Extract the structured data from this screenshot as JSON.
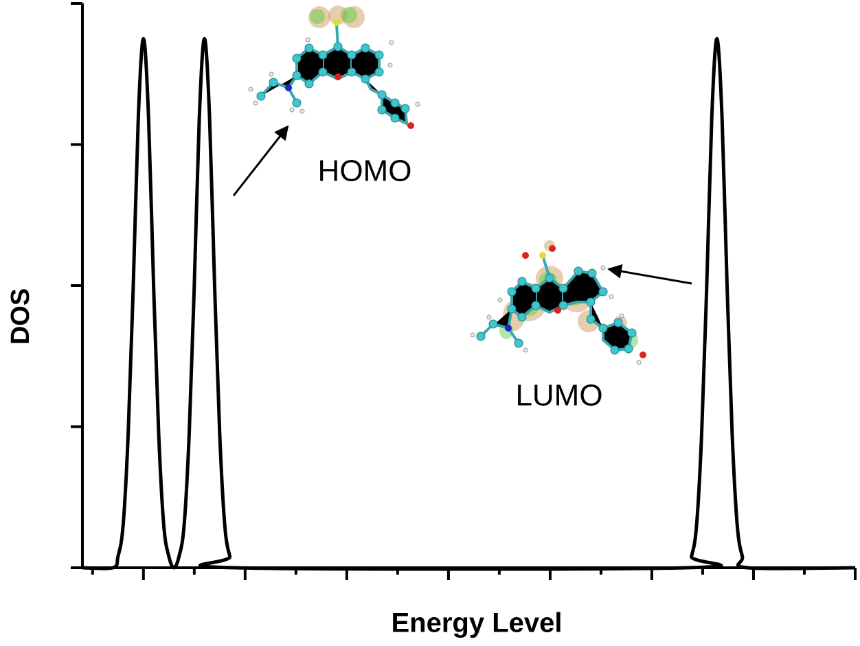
{
  "chart_data": {
    "type": "line",
    "xlabel": "Energy Level",
    "ylabel": "DOS",
    "annotations": [
      "HOMO",
      "LUMO"
    ],
    "x": [
      0,
      0.3,
      0.35,
      0.4,
      0.45,
      0.5,
      0.55,
      0.6,
      0.65,
      0.7,
      0.75,
      0.8,
      0.85,
      0.9,
      0.95,
      1.0,
      1.05,
      1.1,
      1.15,
      1.2,
      1.25,
      1.3,
      1.35,
      1.4,
      1.45,
      1.5,
      5.94,
      5.99,
      6.04,
      6.09,
      6.14,
      6.19,
      6.24,
      6.29,
      6.34,
      6.39,
      6.44,
      6.49,
      6.54,
      7.6
    ],
    "series": [
      {
        "color": "#000000",
        "values": [
          0,
          0,
          0.08,
          0.3,
          0.95,
          2.0,
          3.2,
          3.75,
          3.2,
          2.0,
          0.95,
          0.3,
          0.08,
          0,
          0.08,
          0.3,
          0.95,
          2.0,
          3.2,
          3.75,
          3.2,
          2.0,
          0.95,
          0.3,
          0.08,
          0,
          0,
          0.08,
          0.3,
          0.95,
          2.0,
          3.2,
          3.75,
          3.2,
          2.0,
          0.95,
          0.3,
          0.08,
          0,
          0
        ]
      }
    ],
    "xlim": [
      0,
      7.6
    ],
    "xticks": [
      0.6,
      1.6,
      2.6,
      3.6,
      4.6,
      5.6,
      6.6,
      7.6
    ],
    "xminorticks": [
      0.1,
      1.1,
      2.1,
      3.1,
      4.1,
      5.1,
      6.1,
      7.1
    ],
    "ylim": [
      0,
      4
    ],
    "yticks": [
      0,
      1,
      2,
      3,
      4
    ]
  }
}
